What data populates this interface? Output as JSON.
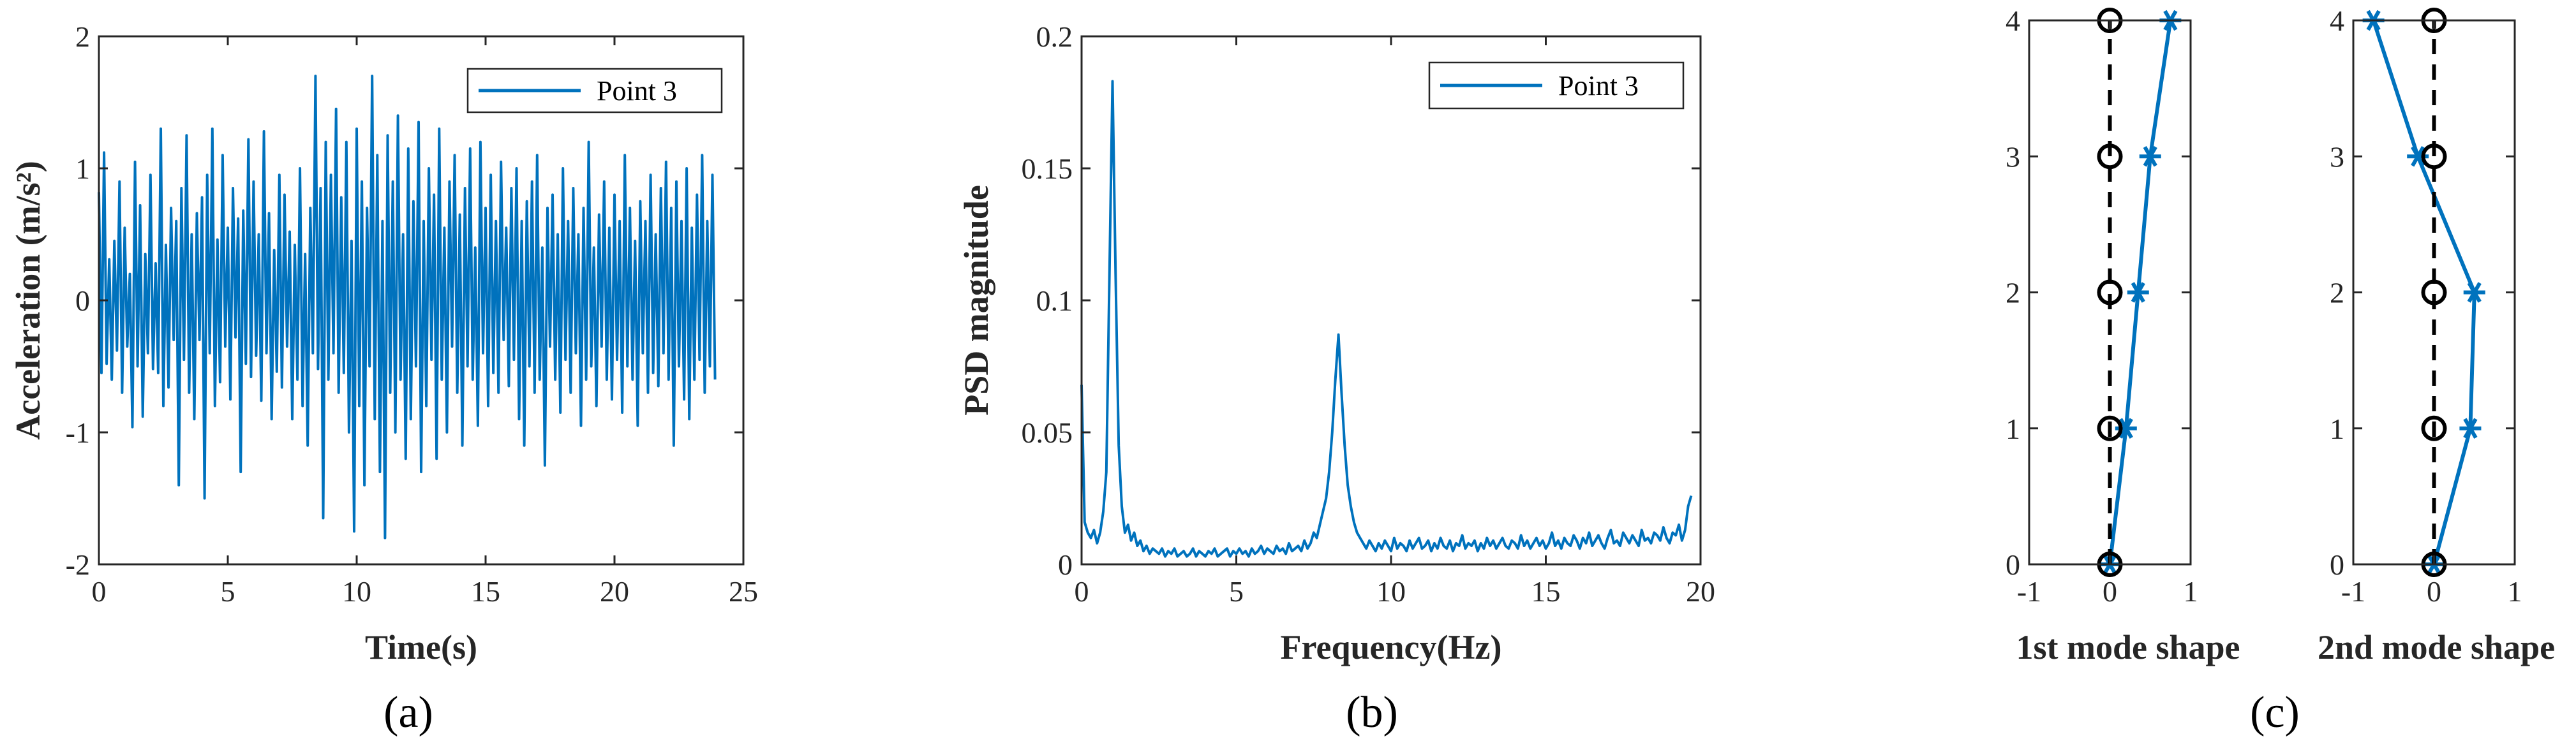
{
  "colors": {
    "series": "#0072BD",
    "axes": "#262626",
    "reference": "#000000"
  },
  "chart_data": [
    {
      "id": "a",
      "type": "line",
      "panel_label": "(a)",
      "title": "",
      "xlabel": "Time(s)",
      "ylabel": "Acceleration (m/s²)",
      "xlim": [
        0,
        25
      ],
      "ylim": [
        -2,
        2
      ],
      "xticks": [
        0,
        5,
        10,
        15,
        20,
        25
      ],
      "yticks": [
        -2,
        -1,
        0,
        1,
        2
      ],
      "legend": {
        "labels": [
          "Point 3"
        ],
        "location": "top-right"
      },
      "series": [
        {
          "name": "Point 3",
          "x_start": 0,
          "x_step": 0.1,
          "values": [
            0.82,
            -0.55,
            1.12,
            -0.48,
            0.31,
            -0.6,
            0.45,
            -0.38,
            0.9,
            -0.7,
            0.55,
            -0.35,
            0.2,
            -0.96,
            1.05,
            -0.5,
            0.72,
            -0.88,
            0.35,
            -0.4,
            0.95,
            -0.52,
            0.28,
            -0.55,
            1.3,
            -0.8,
            0.42,
            -0.66,
            0.7,
            -0.3,
            0.6,
            -1.4,
            0.85,
            -0.45,
            1.25,
            -0.7,
            0.5,
            -0.9,
            0.66,
            -0.3,
            0.78,
            -1.5,
            0.95,
            -0.4,
            1.3,
            -0.8,
            0.46,
            -0.62,
            1.1,
            -0.35,
            0.55,
            -0.75,
            0.85,
            -0.28,
            0.62,
            -1.3,
            0.68,
            -0.48,
            1.22,
            -0.58,
            0.9,
            -0.42,
            0.5,
            -0.76,
            1.28,
            -0.4,
            0.66,
            -0.9,
            0.38,
            -0.54,
            0.95,
            -0.66,
            0.8,
            -0.35,
            0.52,
            -0.9,
            0.42,
            -0.6,
            1.0,
            -0.8,
            0.35,
            -1.1,
            0.7,
            -0.4,
            1.7,
            -0.52,
            0.85,
            -1.65,
            1.2,
            -0.6,
            0.95,
            -0.4,
            1.45,
            -0.7,
            0.78,
            -0.55,
            1.2,
            -1.0,
            0.45,
            -1.75,
            1.3,
            -0.8,
            0.9,
            -1.4,
            0.7,
            -0.5,
            1.7,
            -0.9,
            1.1,
            -1.3,
            0.6,
            -1.8,
            1.25,
            -0.7,
            0.9,
            -1.0,
            1.4,
            -0.6,
            0.5,
            -1.2,
            1.15,
            -0.9,
            0.75,
            -0.5,
            1.35,
            -1.3,
            0.6,
            -0.8,
            1.0,
            -0.45,
            0.8,
            -1.2,
            1.3,
            -0.6,
            0.55,
            -1.0,
            0.9,
            -0.35,
            1.1,
            -0.7,
            0.65,
            -1.1,
            0.85,
            -0.5,
            1.15,
            -0.6,
            0.4,
            -0.95,
            1.2,
            -0.4,
            0.7,
            -0.8,
            0.95,
            -0.55,
            0.6,
            -0.7,
            1.05,
            -0.3,
            0.55,
            -0.65,
            0.85,
            -0.45,
            1.0,
            -0.9,
            0.6,
            -1.1,
            0.75,
            -0.5,
            0.9,
            -0.7,
            1.1,
            -0.6,
            0.4,
            -1.25,
            0.7,
            -0.35,
            0.8,
            -0.6,
            0.5,
            -0.85,
            1.0,
            -0.45,
            0.6,
            -0.7,
            0.85,
            -0.4,
            0.5,
            -0.95,
            0.7,
            -0.6,
            1.2,
            -0.5,
            0.4,
            -0.8,
            0.65,
            -0.35,
            0.9,
            -0.6,
            0.55,
            -0.75,
            0.8,
            -0.45,
            0.6,
            -0.85,
            1.1,
            -0.5,
            0.7,
            -0.6,
            0.45,
            -0.95,
            0.75,
            -0.4,
            0.6,
            -0.7,
            0.95,
            -0.55,
            0.5,
            -0.65,
            0.85,
            -0.4,
            1.05,
            -0.6,
            0.7,
            -1.1,
            0.9,
            -0.5,
            0.6,
            -0.75,
            1.0,
            -0.9,
            0.55,
            -0.6,
            0.8,
            -0.45,
            1.1,
            -0.7,
            0.6,
            -0.5,
            0.95,
            -0.6
          ]
        }
      ]
    },
    {
      "id": "b",
      "type": "line",
      "panel_label": "(b)",
      "title": "",
      "xlabel": "Frequency(Hz)",
      "ylabel": "PSD magnitude",
      "xlim": [
        0,
        20
      ],
      "ylim": [
        0,
        0.2
      ],
      "xticks": [
        0,
        5,
        10,
        15,
        20
      ],
      "yticks": [
        0,
        0.05,
        0.1,
        0.15,
        0.2
      ],
      "legend": {
        "labels": [
          "Point 3"
        ],
        "location": "top-right"
      },
      "series": [
        {
          "name": "Point 3",
          "x_start": 0,
          "x_step": 0.1,
          "values": [
            0.068,
            0.016,
            0.012,
            0.01,
            0.013,
            0.008,
            0.012,
            0.02,
            0.035,
            0.11,
            0.183,
            0.11,
            0.045,
            0.022,
            0.012,
            0.015,
            0.009,
            0.012,
            0.007,
            0.009,
            0.005,
            0.007,
            0.004,
            0.006,
            0.005,
            0.004,
            0.006,
            0.003,
            0.005,
            0.004,
            0.006,
            0.003,
            0.004,
            0.005,
            0.003,
            0.004,
            0.006,
            0.003,
            0.005,
            0.004,
            0.003,
            0.005,
            0.004,
            0.006,
            0.003,
            0.004,
            0.005,
            0.006,
            0.003,
            0.005,
            0.004,
            0.006,
            0.004,
            0.005,
            0.003,
            0.006,
            0.004,
            0.005,
            0.007,
            0.004,
            0.006,
            0.005,
            0.004,
            0.007,
            0.005,
            0.006,
            0.004,
            0.008,
            0.005,
            0.006,
            0.007,
            0.005,
            0.009,
            0.006,
            0.008,
            0.012,
            0.01,
            0.015,
            0.02,
            0.025,
            0.035,
            0.05,
            0.07,
            0.087,
            0.065,
            0.045,
            0.03,
            0.022,
            0.016,
            0.012,
            0.01,
            0.008,
            0.006,
            0.009,
            0.007,
            0.005,
            0.008,
            0.006,
            0.009,
            0.007,
            0.005,
            0.01,
            0.006,
            0.008,
            0.007,
            0.005,
            0.009,
            0.006,
            0.008,
            0.01,
            0.006,
            0.007,
            0.009,
            0.005,
            0.008,
            0.006,
            0.01,
            0.007,
            0.006,
            0.009,
            0.005,
            0.008,
            0.007,
            0.011,
            0.006,
            0.008,
            0.007,
            0.009,
            0.005,
            0.008,
            0.006,
            0.01,
            0.007,
            0.009,
            0.006,
            0.008,
            0.01,
            0.007,
            0.006,
            0.009,
            0.008,
            0.006,
            0.011,
            0.007,
            0.009,
            0.006,
            0.008,
            0.01,
            0.007,
            0.009,
            0.006,
            0.008,
            0.012,
            0.007,
            0.009,
            0.006,
            0.01,
            0.008,
            0.007,
            0.011,
            0.009,
            0.006,
            0.01,
            0.008,
            0.012,
            0.007,
            0.009,
            0.011,
            0.008,
            0.006,
            0.01,
            0.013,
            0.008,
            0.009,
            0.007,
            0.012,
            0.01,
            0.008,
            0.011,
            0.009,
            0.007,
            0.013,
            0.009,
            0.01,
            0.008,
            0.012,
            0.011,
            0.009,
            0.014,
            0.01,
            0.008,
            0.012,
            0.011,
            0.015,
            0.009,
            0.013,
            0.022,
            0.026
          ]
        }
      ]
    },
    {
      "id": "c1",
      "type": "line",
      "panel_label": "(c)",
      "title": "",
      "xlabel": "1st mode shape",
      "ylabel": "",
      "xlim": [
        -1,
        1
      ],
      "ylim": [
        0,
        4
      ],
      "xticks": [
        -1,
        0,
        1
      ],
      "yticks": [
        0,
        1,
        2,
        3,
        4
      ],
      "series": [
        {
          "name": "mode shape",
          "marker": "asterisk",
          "x": [
            0.0,
            0.2,
            0.35,
            0.5,
            0.75
          ],
          "y": [
            0,
            1,
            2,
            3,
            4
          ]
        },
        {
          "name": "reference",
          "marker": "circle",
          "dashed": true,
          "x": [
            0,
            0,
            0,
            0,
            0
          ],
          "y": [
            0,
            1,
            2,
            3,
            4
          ]
        }
      ]
    },
    {
      "id": "c2",
      "type": "line",
      "panel_label": "",
      "title": "",
      "xlabel": "2nd mode shape",
      "ylabel": "",
      "xlim": [
        -1,
        1
      ],
      "ylim": [
        0,
        4
      ],
      "xticks": [
        -1,
        0,
        1
      ],
      "yticks": [
        0,
        1,
        2,
        3,
        4
      ],
      "series": [
        {
          "name": "mode shape",
          "marker": "asterisk",
          "x": [
            0.0,
            0.45,
            0.5,
            -0.2,
            -0.75
          ],
          "y": [
            0,
            1,
            2,
            3,
            4
          ]
        },
        {
          "name": "reference",
          "marker": "circle",
          "dashed": true,
          "x": [
            0,
            0,
            0,
            0,
            0
          ],
          "y": [
            0,
            1,
            2,
            3,
            4
          ]
        }
      ]
    }
  ]
}
